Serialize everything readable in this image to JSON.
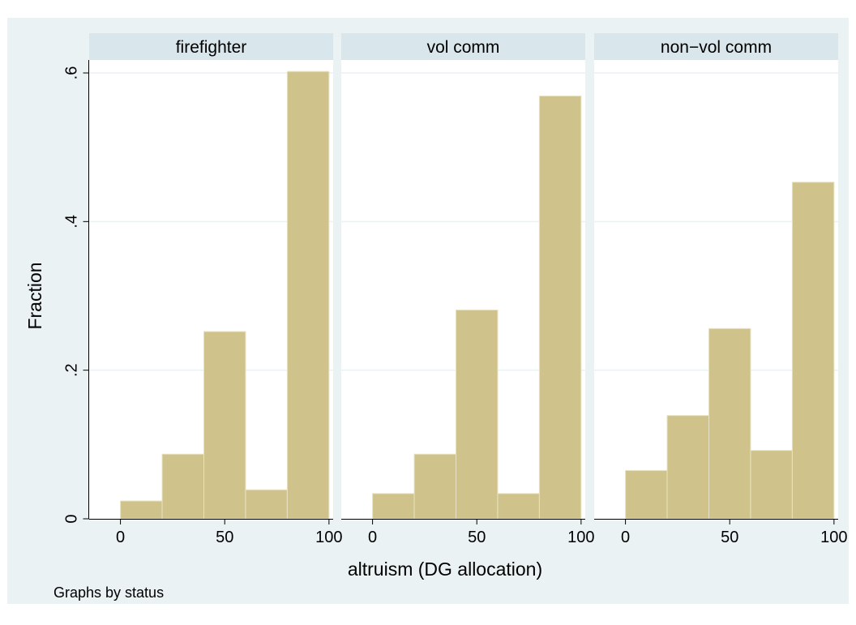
{
  "colors": {
    "background": "#eaf2f3",
    "panel": "#ffffff",
    "strip": "#d9e6eb",
    "bar_fill": "#cfc38b",
    "bar_edge": "#e8e2c2",
    "grid": "#eaf2f3",
    "axis": "#000000"
  },
  "chart_data": {
    "type": "bar",
    "title": "",
    "xlabel": "altruism (DG allocation)",
    "ylabel": "Fraction",
    "note": "Graphs by status",
    "xlim": [
      -15,
      102
    ],
    "ylim": [
      0,
      0.6
    ],
    "x_ticks": [
      0,
      50,
      100
    ],
    "x_tick_labels": [
      "0",
      "50",
      "100"
    ],
    "y_ticks": [
      0,
      0.2,
      0.4,
      0.6
    ],
    "y_tick_labels": [
      "0",
      ".2",
      ".4",
      ".6"
    ],
    "grid": true,
    "bin_edges": [
      0,
      20,
      40,
      60,
      80,
      100
    ],
    "panels": [
      {
        "name": "firefighter",
        "values": [
          0.024,
          0.087,
          0.252,
          0.039,
          0.602
        ]
      },
      {
        "name": "vol comm",
        "values": [
          0.034,
          0.087,
          0.281,
          0.034,
          0.569
        ]
      },
      {
        "name": "non−vol comm",
        "values": [
          0.065,
          0.139,
          0.256,
          0.092,
          0.453
        ]
      }
    ]
  }
}
